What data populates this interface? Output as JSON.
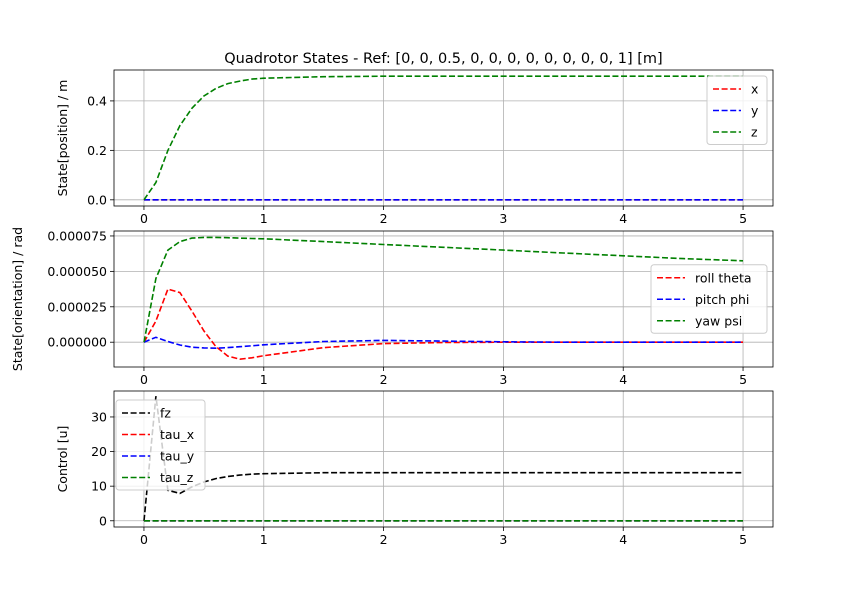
{
  "chart_data": [
    {
      "type": "line",
      "title": "Quadrotor States - Ref: [0, 0, 0.5, 0, 0, 0, 0, 0, 0, 0, 0, 1] [m]",
      "xlabel": "",
      "ylabel": "State[position] / m",
      "xlim": [
        -0.25,
        5.25
      ],
      "ylim": [
        -0.025,
        0.525
      ],
      "xticks": [
        "0",
        "1",
        "2",
        "3",
        "4",
        "5"
      ],
      "yticks": [
        "0.0",
        "0.2",
        "0.4"
      ],
      "grid": true,
      "legend": "upper right",
      "x": [
        0,
        0.1,
        0.2,
        0.3,
        0.4,
        0.5,
        0.6,
        0.7,
        0.8,
        0.9,
        1,
        1.5,
        2,
        2.5,
        3,
        3.5,
        4,
        4.5,
        5
      ],
      "series": [
        {
          "name": "x",
          "color": "#ff0000",
          "values": [
            0,
            0,
            0,
            0,
            0,
            0,
            0,
            0,
            0,
            0,
            0,
            0,
            0,
            0,
            0,
            0,
            0,
            0,
            0
          ]
        },
        {
          "name": "y",
          "color": "#0000ff",
          "values": [
            0,
            0,
            0,
            0,
            0,
            0,
            0,
            0,
            0,
            0,
            0,
            0,
            0,
            0,
            0,
            0,
            0,
            0,
            0
          ]
        },
        {
          "name": "z",
          "color": "#008000",
          "values": [
            0,
            0.07,
            0.2,
            0.3,
            0.37,
            0.42,
            0.45,
            0.47,
            0.48,
            0.488,
            0.492,
            0.498,
            0.5,
            0.5,
            0.5,
            0.5,
            0.5,
            0.5,
            0.5
          ]
        }
      ]
    },
    {
      "type": "line",
      "title": "",
      "xlabel": "",
      "ylabel": "State[orientation] / rad",
      "xlim": [
        -0.25,
        5.25
      ],
      "ylim": [
        -1.75e-05,
        7.85e-05
      ],
      "xticks": [
        "0",
        "1",
        "2",
        "3",
        "4",
        "5"
      ],
      "yticks": [
        "0.000000",
        "0.000025",
        "0.000050",
        "0.000075"
      ],
      "grid": true,
      "legend": "center right",
      "x": [
        0,
        0.1,
        0.2,
        0.3,
        0.4,
        0.5,
        0.6,
        0.7,
        0.8,
        0.9,
        1,
        1.5,
        2,
        2.5,
        3,
        3.5,
        4,
        4.5,
        5
      ],
      "series": [
        {
          "name": "roll theta",
          "color": "#ff0000",
          "values": [
            0,
            1.5e-05,
            3.75e-05,
            3.5e-05,
            2.2e-05,
            8e-06,
            -3e-06,
            -9.8e-06,
            -1.2e-05,
            -1.1e-05,
            -9.5e-06,
            -3.8e-06,
            -1e-06,
            -2e-07,
            0,
            0,
            0,
            0,
            0
          ]
        },
        {
          "name": "pitch phi",
          "color": "#0000ff",
          "values": [
            0,
            3.5e-06,
            5e-07,
            -2e-06,
            -3.5e-06,
            -4e-06,
            -4.2e-06,
            -3.8e-06,
            -3.2e-06,
            -2.5e-06,
            -1.8e-06,
            5e-07,
            1.3e-06,
            8e-07,
            3e-07,
            0,
            0,
            0,
            0
          ]
        },
        {
          "name": "yaw psi",
          "color": "#008000",
          "values": [
            0,
            4.5e-05,
            6.5e-05,
            7.1e-05,
            7.35e-05,
            7.4e-05,
            7.4e-05,
            7.38e-05,
            7.35e-05,
            7.32e-05,
            7.3e-05,
            7.1e-05,
            6.9e-05,
            6.7e-05,
            6.5e-05,
            6.3e-05,
            6.1e-05,
            5.9e-05,
            5.75e-05
          ]
        }
      ]
    },
    {
      "type": "line",
      "title": "",
      "xlabel": "",
      "ylabel": "Control [u]",
      "xlim": [
        -0.25,
        5.25
      ],
      "ylim": [
        -1.8,
        37.5
      ],
      "xticks": [
        "0",
        "1",
        "2",
        "3",
        "4",
        "5"
      ],
      "yticks": [
        "0",
        "10",
        "20",
        "30"
      ],
      "grid": true,
      "legend": "upper left",
      "x": [
        0,
        0.1,
        0.2,
        0.3,
        0.4,
        0.5,
        0.6,
        0.7,
        0.8,
        0.9,
        1,
        1.5,
        2,
        2.5,
        3,
        3.5,
        4,
        4.5,
        5
      ],
      "series": [
        {
          "name": "fz",
          "color": "#000000",
          "values": [
            0,
            36,
            8.8,
            7.9,
            9.8,
            11.2,
            12.2,
            12.8,
            13.2,
            13.5,
            13.6,
            13.9,
            13.9,
            13.9,
            13.9,
            13.9,
            13.9,
            13.9,
            13.9
          ]
        },
        {
          "name": "tau_x",
          "color": "#ff0000",
          "values": [
            0,
            0,
            0,
            0,
            0,
            0,
            0,
            0,
            0,
            0,
            0,
            0,
            0,
            0,
            0,
            0,
            0,
            0,
            0
          ]
        },
        {
          "name": "tau_y",
          "color": "#0000ff",
          "values": [
            0,
            0,
            0,
            0,
            0,
            0,
            0,
            0,
            0,
            0,
            0,
            0,
            0,
            0,
            0,
            0,
            0,
            0,
            0
          ]
        },
        {
          "name": "tau_z",
          "color": "#008000",
          "values": [
            0,
            0,
            0,
            0,
            0,
            0,
            0,
            0,
            0,
            0,
            0,
            0,
            0,
            0,
            0,
            0,
            0,
            0,
            0
          ]
        }
      ]
    }
  ]
}
